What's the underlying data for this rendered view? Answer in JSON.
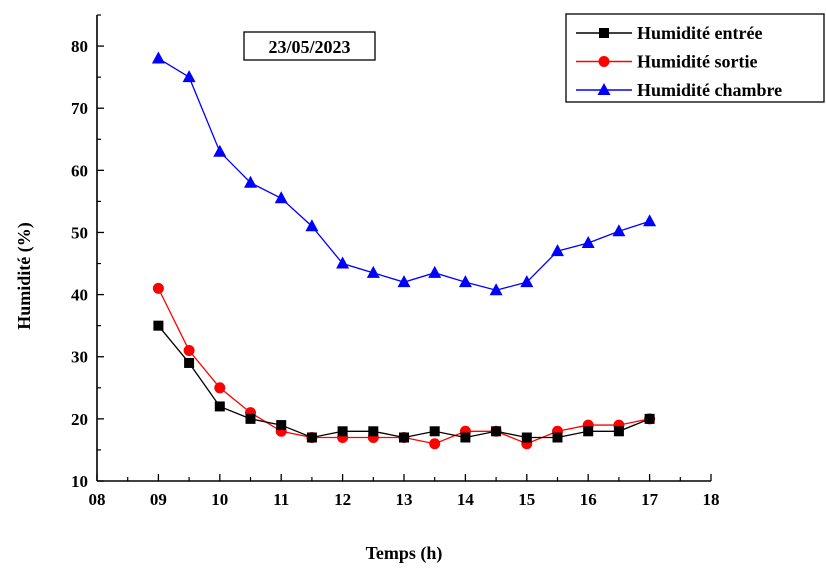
{
  "chart_data": {
    "type": "line",
    "annotation": "23/05/2023",
    "xlabel": "Temps (h)",
    "ylabel": "Humidité (%)",
    "xlim": [
      8,
      18
    ],
    "ylim": [
      10,
      85
    ],
    "x_ticks": [
      8,
      9,
      10,
      11,
      12,
      13,
      14,
      15,
      16,
      17,
      18
    ],
    "x_tick_labels": [
      "08",
      "09",
      "10",
      "11",
      "12",
      "13",
      "14",
      "15",
      "16",
      "17",
      "18"
    ],
    "y_ticks": [
      10,
      20,
      30,
      40,
      50,
      60,
      70,
      80
    ],
    "y_tick_labels": [
      "10",
      "20",
      "30",
      "40",
      "50",
      "60",
      "70",
      "80"
    ],
    "grid": false,
    "legend_position": "top-right",
    "x": [
      9,
      9.5,
      10,
      10.5,
      11,
      11.5,
      12,
      12.5,
      13,
      13.5,
      14,
      14.5,
      15,
      15.5,
      16,
      16.5,
      17
    ],
    "series": [
      {
        "name": "Humidité entrée",
        "color": "#000000",
        "marker": "square",
        "values": [
          35,
          29,
          22,
          20,
          19,
          17,
          18,
          18,
          17,
          18,
          17,
          18,
          17,
          17,
          18,
          18,
          20
        ]
      },
      {
        "name": "Humidité sortie",
        "color": "#ff0000",
        "marker": "circle",
        "values": [
          41,
          31,
          25,
          21,
          18,
          17,
          17,
          17,
          17,
          16,
          18,
          18,
          16,
          18,
          19,
          19,
          20
        ]
      },
      {
        "name": "Humidité chambre",
        "color": "#0000ff",
        "marker": "triangle",
        "values": [
          78,
          75,
          63,
          58,
          55.5,
          51,
          45,
          43.5,
          42,
          43.5,
          42,
          40.7,
          42,
          47,
          48.3,
          50.2,
          51.8
        ]
      }
    ]
  }
}
